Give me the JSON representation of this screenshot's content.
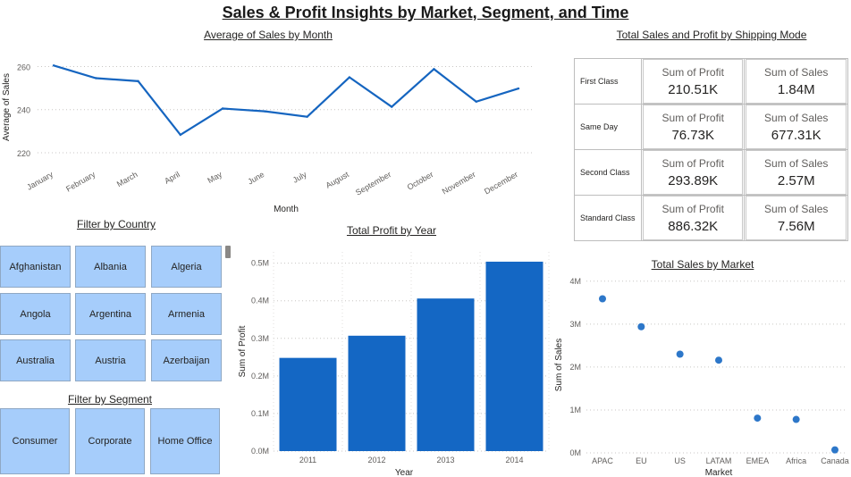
{
  "title": "Sales & Profit Insights by Market, Segment, and Time",
  "monthly": {
    "title": "Average of Sales by Month",
    "chart_data": {
      "type": "line",
      "xlabel": "Month",
      "ylabel": "Average of Sales",
      "ylim": [
        215,
        266
      ],
      "yticks": [
        220,
        240,
        260
      ],
      "grid": "dotted horizontal",
      "color": "#1565c0",
      "categories": [
        "January",
        "February",
        "March",
        "April",
        "May",
        "June",
        "July",
        "August",
        "September",
        "October",
        "November",
        "December"
      ],
      "values": [
        260.5,
        254.6,
        253.2,
        228.3,
        240.5,
        239.2,
        236.7,
        255.0,
        241.3,
        258.8,
        243.7,
        249.8
      ]
    }
  },
  "shipping": {
    "title": "Total Sales and Profit by Shipping Mode",
    "rows": [
      {
        "mode": "First Class",
        "profit_label": "Sum of Profit",
        "profit": "210.51K",
        "sales_label": "Sum of Sales",
        "sales": "1.84M"
      },
      {
        "mode": "Same Day",
        "profit_label": "Sum of Profit",
        "profit": "76.73K",
        "sales_label": "Sum of Sales",
        "sales": "677.31K"
      },
      {
        "mode": "Second Class",
        "profit_label": "Sum of Profit",
        "profit": "293.89K",
        "sales_label": "Sum of Sales",
        "sales": "2.57M"
      },
      {
        "mode": "Standard Class",
        "profit_label": "Sum of Profit",
        "profit": "886.32K",
        "sales_label": "Sum of Sales",
        "sales": "7.56M"
      }
    ]
  },
  "country_filter": {
    "title": "Filter by Country",
    "items": [
      "Afghanistan",
      "Albania",
      "Algeria",
      "Angola",
      "Argentina",
      "Armenia",
      "Australia",
      "Austria",
      "Azerbaijan"
    ]
  },
  "segment_filter": {
    "title": "Filter by Segment",
    "items": [
      "Consumer",
      "Corporate",
      "Home Office"
    ]
  },
  "yearly": {
    "title": "Total Profit by Year",
    "chart_data": {
      "type": "bar",
      "xlabel": "Year",
      "ylabel": "Sum of Profit",
      "categories": [
        "2011",
        "2012",
        "2013",
        "2014"
      ],
      "values": [
        0.248,
        0.307,
        0.406,
        0.504
      ],
      "unit": "M",
      "ylim": [
        0,
        0.53
      ],
      "yticks": [
        "0.0M",
        "0.1M",
        "0.2M",
        "0.3M",
        "0.4M",
        "0.5M"
      ],
      "grid": "dotted",
      "color": "#1467c4"
    }
  },
  "market": {
    "title": "Total Sales by Market",
    "chart_data": {
      "type": "scatter",
      "xlabel": "Market",
      "ylabel": "Sum of Sales",
      "categories": [
        "APAC",
        "EU",
        "US",
        "LATAM",
        "EMEA",
        "Africa",
        "Canada"
      ],
      "values": [
        3.59,
        2.94,
        2.3,
        2.16,
        0.81,
        0.78,
        0.07
      ],
      "unit": "M",
      "ylim": [
        0,
        4.1
      ],
      "yticks": [
        "0M",
        "1M",
        "2M",
        "3M",
        "4M"
      ],
      "grid": "dotted horizontal",
      "color": "#2d77c9"
    }
  }
}
